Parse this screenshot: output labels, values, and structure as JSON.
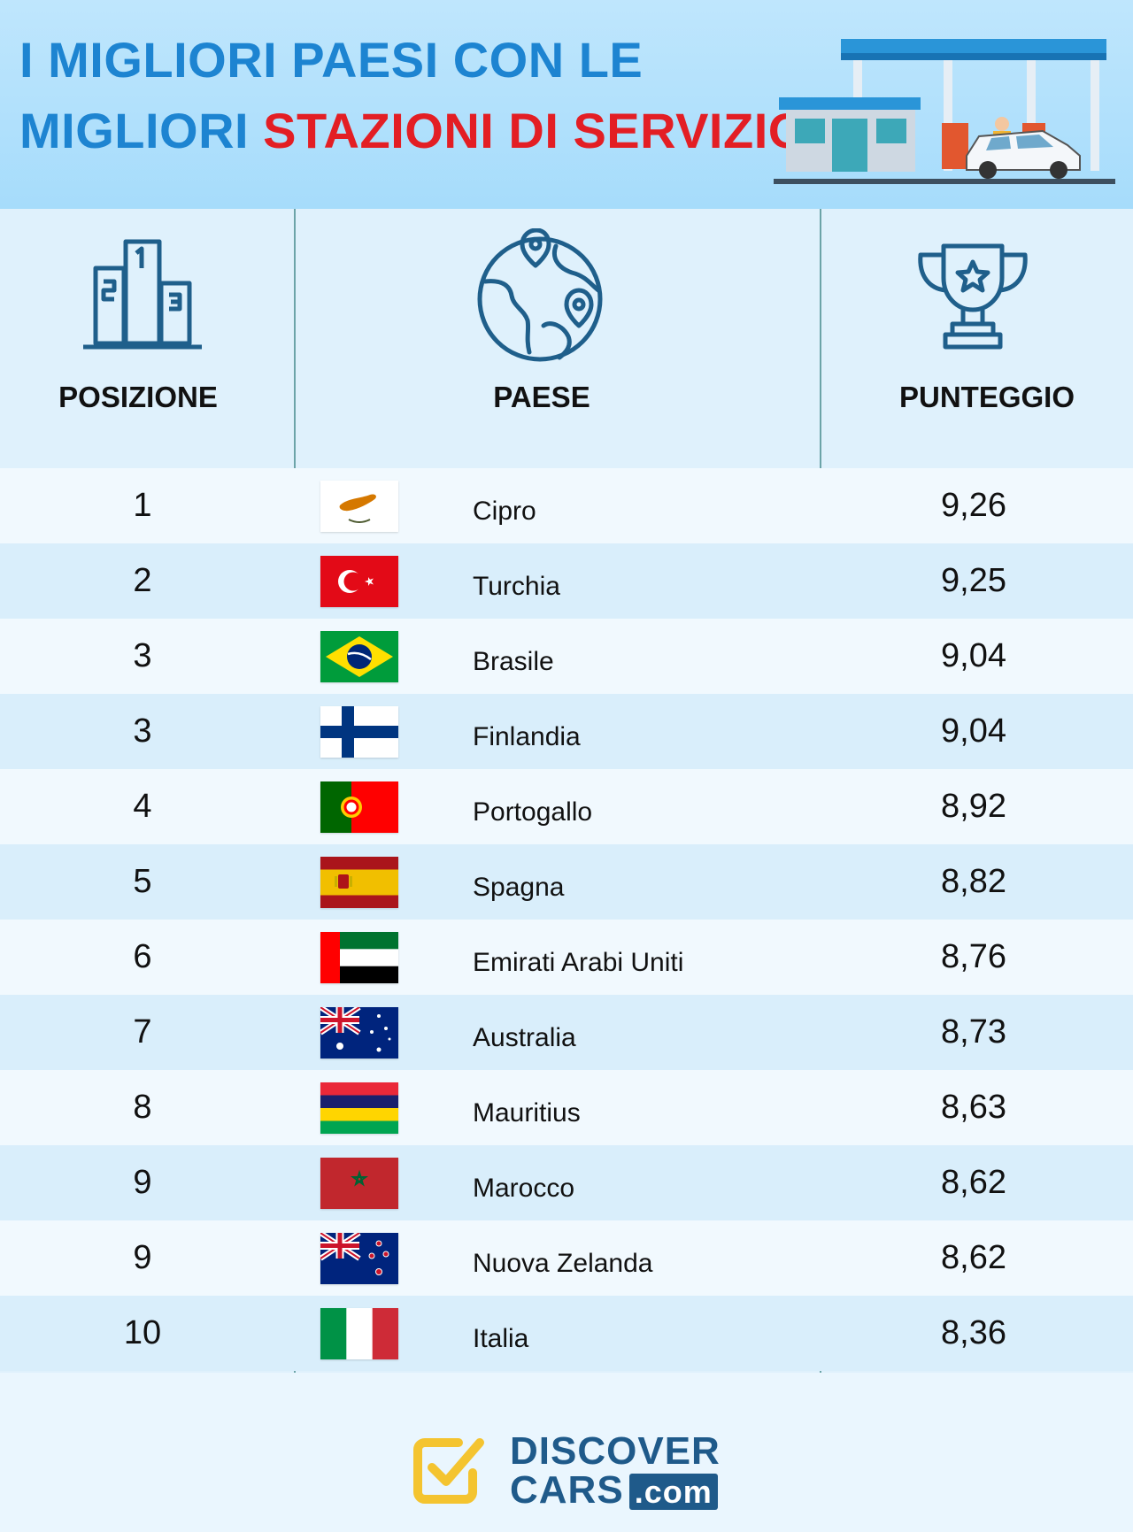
{
  "header": {
    "title_line1": "I MIGLIORI PAESI CON LE",
    "title_line2_blue": "MIGLIORI ",
    "title_line2_red": "STAZIONI DI SERVIZIO"
  },
  "columns": {
    "position": "POSIZIONE",
    "country": "PAESE",
    "score": "PUNTEGGIO"
  },
  "rows": [
    {
      "pos": "1",
      "country": "Cipro",
      "score": "9,26",
      "flag": "cyprus"
    },
    {
      "pos": "2",
      "country": "Turchia",
      "score": "9,25",
      "flag": "turkey"
    },
    {
      "pos": "3",
      "country": "Brasile",
      "score": "9,04",
      "flag": "brazil"
    },
    {
      "pos": "3",
      "country": "Finlandia",
      "score": "9,04",
      "flag": "finland"
    },
    {
      "pos": "4",
      "country": "Portogallo",
      "score": "8,92",
      "flag": "portugal"
    },
    {
      "pos": "5",
      "country": "Spagna",
      "score": "8,82",
      "flag": "spain"
    },
    {
      "pos": "6",
      "country": "Emirati Arabi Uniti",
      "score": "8,76",
      "flag": "uae"
    },
    {
      "pos": "7",
      "country": "Australia",
      "score": "8,73",
      "flag": "australia"
    },
    {
      "pos": "8",
      "country": "Mauritius",
      "score": "8,63",
      "flag": "mauritius"
    },
    {
      "pos": "9",
      "country": "Marocco",
      "score": "8,62",
      "flag": "morocco"
    },
    {
      "pos": "9",
      "country": "Nuova Zelanda",
      "score": "8,62",
      "flag": "new-zealand"
    },
    {
      "pos": "10",
      "country": "Italia",
      "score": "8,36",
      "flag": "italy"
    }
  ],
  "logo": {
    "line1": "DISCOVER",
    "line2": "CARS",
    "suffix": ".com"
  },
  "icons": [
    "podium-icon",
    "globe-icon",
    "trophy-icon",
    "gas-station-illustration",
    "discovercars-check-logo"
  ],
  "colors": {
    "title_blue": "#1d84d1",
    "title_red": "#e31e24",
    "icon_blue": "#1f5f8b",
    "logo_yellow": "#f4c430"
  }
}
